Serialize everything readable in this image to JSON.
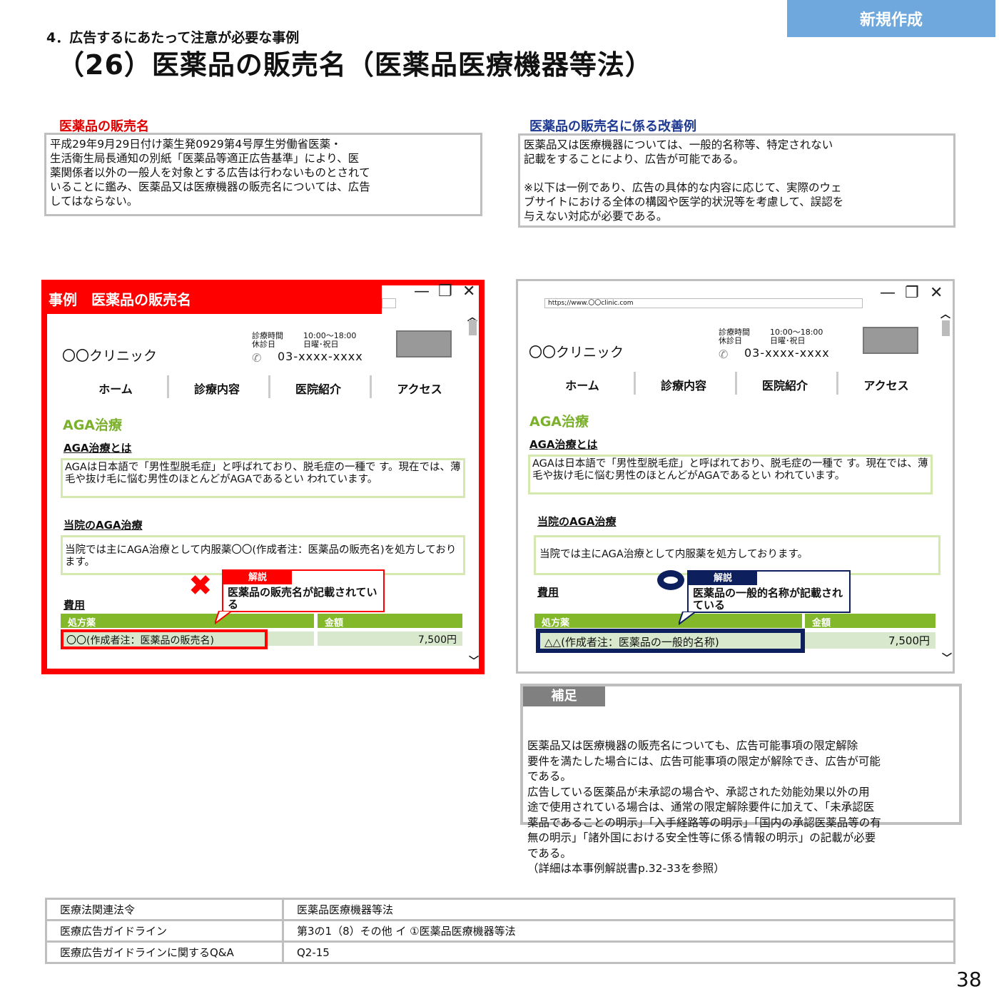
{
  "header": {
    "new_button": "新規作成",
    "section": "4．広告するにあたって注意が必要な事例",
    "title": "（26）医薬品の販売名（医薬品医療機器等法）"
  },
  "left_section": {
    "label": "医薬品の販売名",
    "label_color": "#e00000",
    "text": "平成29年9月29日付け薬生発0929第4号厚生労働省医薬・\n生活衛生局長通知の別紙「医薬品等適正広告基準」により、医\n薬関係者以外の一般人を対象とする広告は行わないものとされて\nいることに鑑み、医薬品又は医療機器の販売名については、広告\nしてはならない。"
  },
  "right_section": {
    "label": "医薬品の販売名に係る改善例",
    "label_color": "#1f3a93",
    "text": "医薬品又は医療機器については、一般的名称等、特定されない\n記載をすることにより、広告が可能である。\n\n※以下は一例であり、広告の具体的な内容に応じて、実際のウェ\nブサイトにおける全体の構図や医学的状況等を考慮して、誤認を\n与えない対応が必要である。"
  },
  "bad_example": {
    "banner": "事例　医薬品の販売名",
    "clinic": "〇〇クリニック",
    "hours_label": "診療時間",
    "hours": "10:00～18:00",
    "closed_label": "休診日",
    "closed": "日曜･祝日",
    "phone": "03-xxxx-xxxx",
    "nav": [
      "ホーム",
      "診療内容",
      "医院紹介",
      "アクセス"
    ],
    "aga_heading": "AGA治療",
    "about_heading": "AGA治療とは",
    "about_text": "AGAは日本語で「男性型脱毛症」と呼ばれており、脱毛症の一種で す。現在では、薄毛や抜け毛に悩む男性のほとんどがAGAであるとい われています。",
    "ours_heading": "当院のAGA治療",
    "ours_text": "当院では主にAGA治療として内服薬〇〇(作成者注：医薬品の販売名)を処方しております。",
    "cost_heading": "費用",
    "col_drug": "処方薬",
    "col_price": "金額",
    "drug": "〇〇(作成者注：医薬品の販売名)",
    "price": "7,500円",
    "callout_tab": "解説",
    "callout_text": "医薬品の販売名が記載されている",
    "mark": "cross-icon",
    "accent": "#ff0000"
  },
  "good_example": {
    "url": "https;//www.〇〇clinic.com",
    "clinic": "〇〇クリニック",
    "hours_label": "診療時間",
    "hours": "10:00～18:00",
    "closed_label": "休診日",
    "closed": "日曜･祝日",
    "phone": "03-xxxx-xxxx",
    "nav": [
      "ホーム",
      "診療内容",
      "医院紹介",
      "アクセス"
    ],
    "aga_heading": "AGA治療",
    "about_heading": "AGA治療とは",
    "about_text": "AGAは日本語で「男性型脱毛症」と呼ばれており、脱毛症の一種で す。現在では、薄毛や抜け毛に悩む男性のほとんどがAGAであるとい われています。",
    "ours_heading": "当院のAGA治療",
    "ours_text": "当院では主にAGA治療として内服薬を処方しております。",
    "cost_heading": "費用",
    "col_drug": "処方薬",
    "col_price": "金額",
    "drug": "△△(作成者注：医薬品の一般的名称)",
    "price": "7,500円",
    "callout_tab": "解説",
    "callout_text": "医薬品の一般的名称が記載されている",
    "mark": "circle-icon",
    "accent": "#0d1f5c"
  },
  "supplement": {
    "heading": "補足",
    "text": "医薬品又は医療機器の販売名についても、広告可能事項の限定解除\n要件を満たした場合には、広告可能事項の限定が解除でき、広告が可能\nである。\n広告している医薬品が未承認の場合や、承認された効能効果以外の用\n途で使用されている場合は、通常の限定解除要件に加えて、「未承認医\n薬品であることの明示」「入手経路等の明示」「国内の承認医薬品等の有\n無の明示」「諸外国における安全性等に係る情報の明示」の記載が必要\nである。\n（詳細は本事例解説書p.32-33を参照）"
  },
  "references": [
    {
      "label": "医療法関連法令",
      "value": "医薬品医療機器等法"
    },
    {
      "label": "医療広告ガイドライン",
      "value": "第3の1（8）その他 イ ①医薬品医療機器等法"
    },
    {
      "label": "医療広告ガイドラインに関するQ&A",
      "value": "Q2-15"
    }
  ],
  "page_number": "38"
}
